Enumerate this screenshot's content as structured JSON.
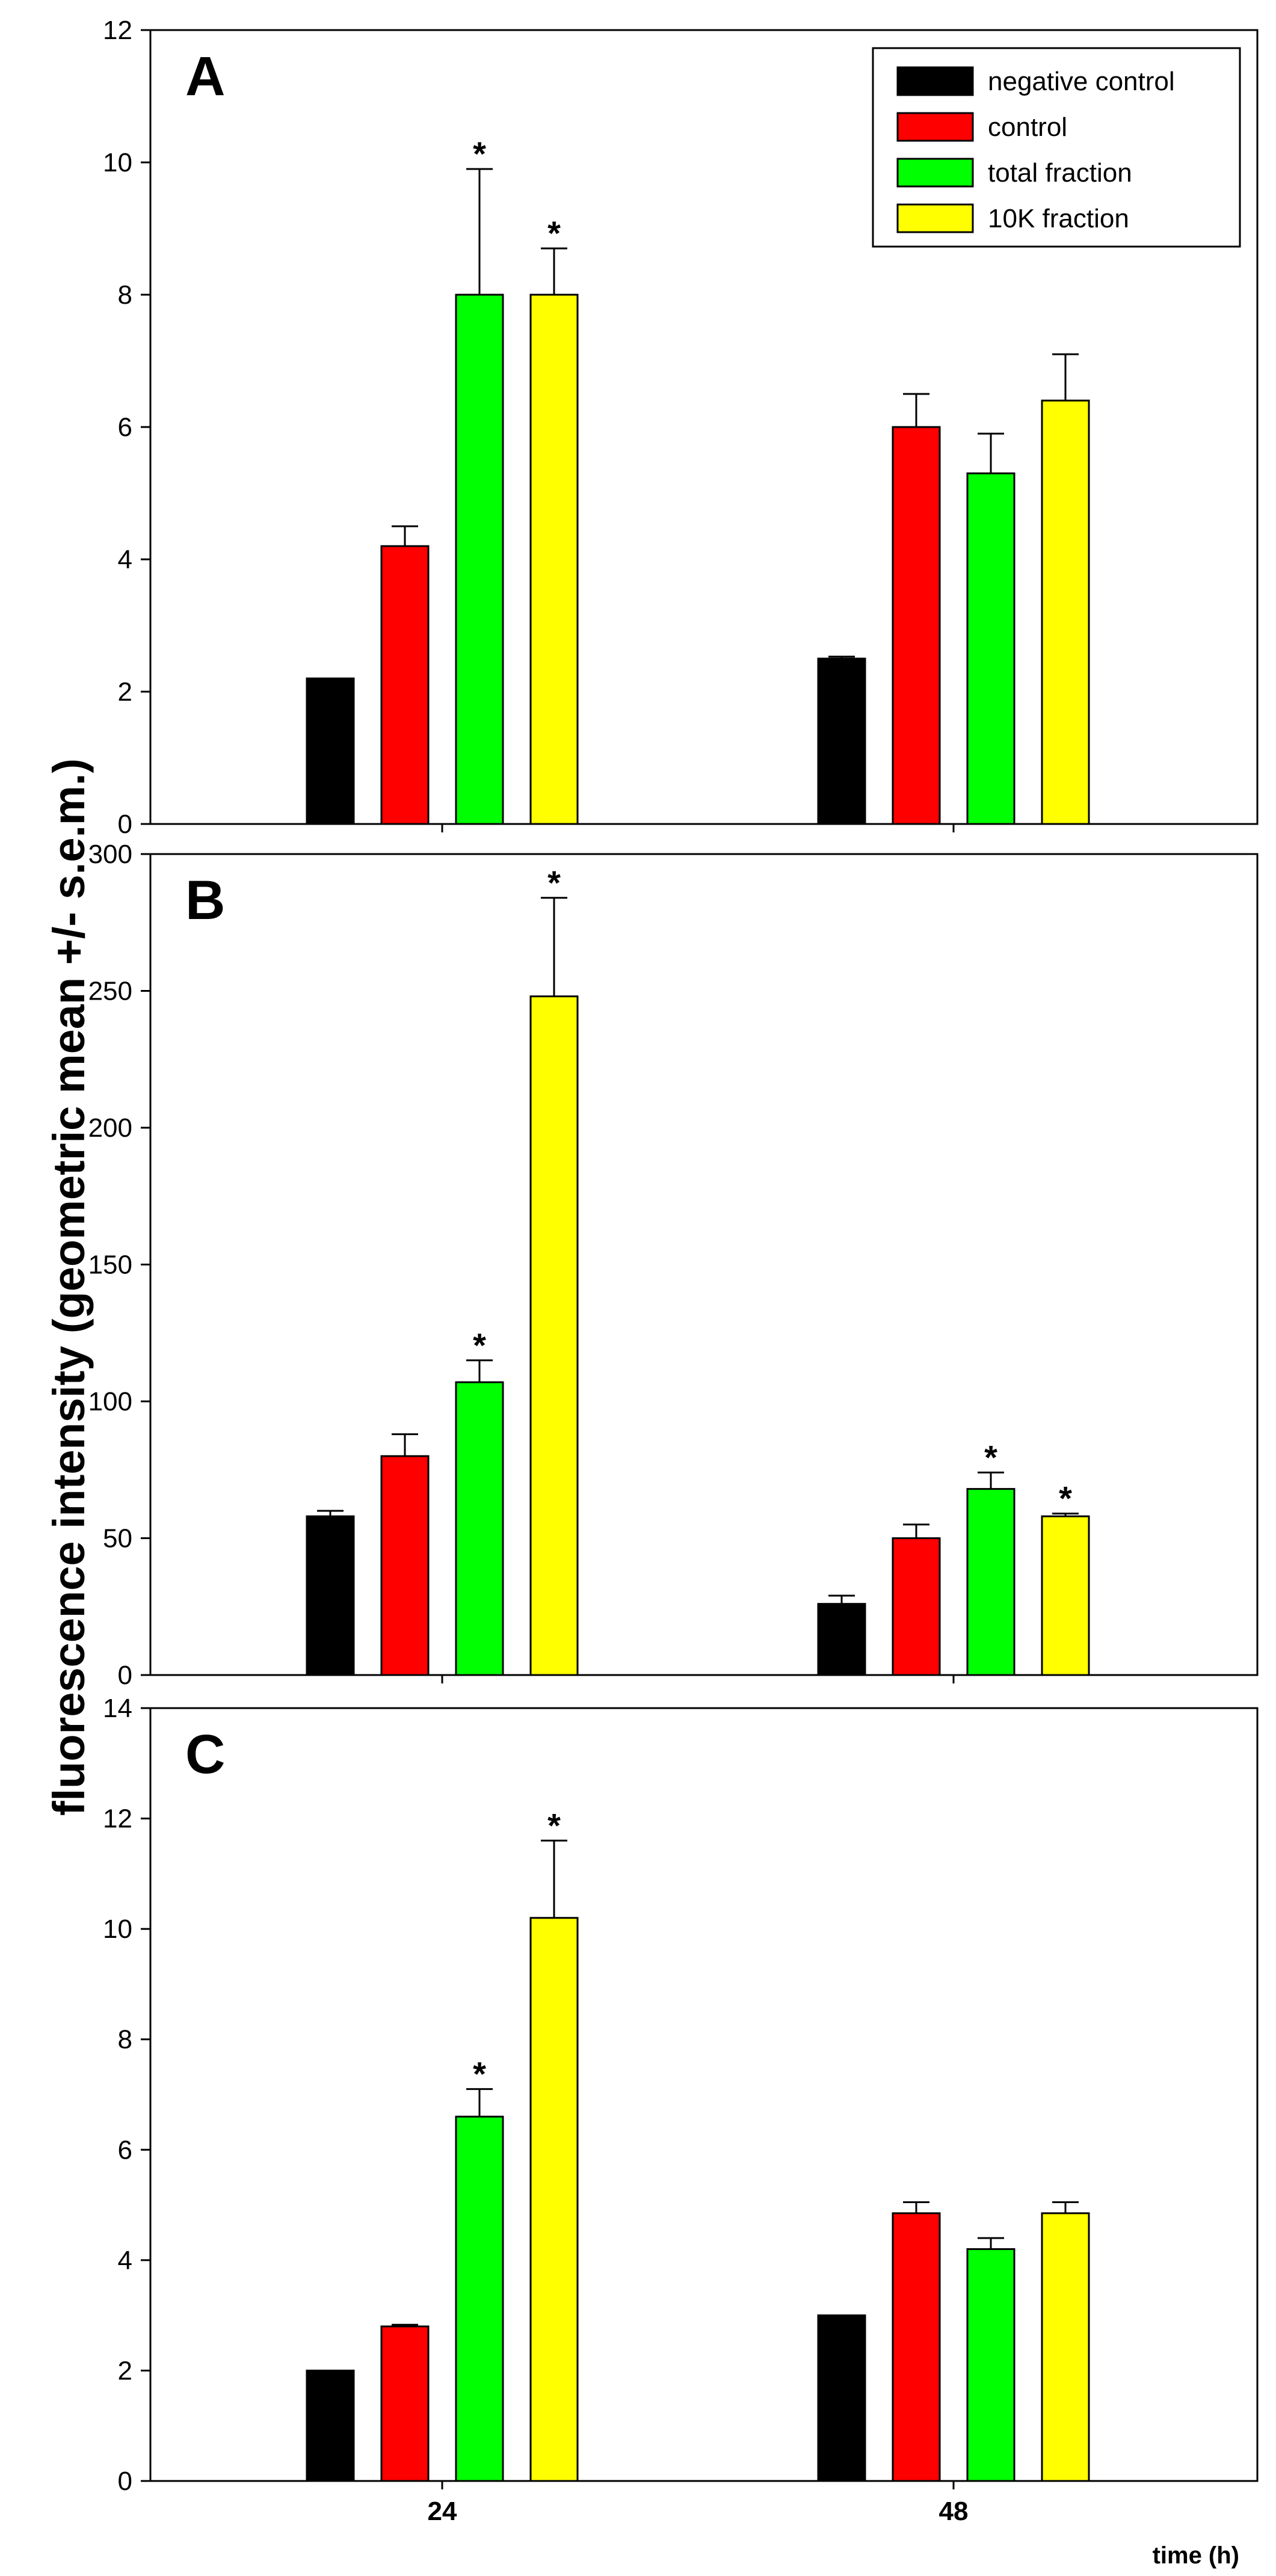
{
  "figure": {
    "ylabel": "fluorescence intensity (geometric mean +/- s.e.m.)",
    "xlabel": "time (h)",
    "categories": [
      "24",
      "48"
    ]
  },
  "legend": {
    "entries": [
      {
        "label": "negative control",
        "color": "#000000"
      },
      {
        "label": "control",
        "color": "#ff0000"
      },
      {
        "label": "total fraction",
        "color": "#00ff00"
      },
      {
        "label": "10K fraction",
        "color": "#ffff00"
      }
    ]
  },
  "chart_data": [
    {
      "type": "bar",
      "panel": "A",
      "categories": [
        "24",
        "48"
      ],
      "ylim": [
        0,
        12
      ],
      "yticks": [
        0,
        2,
        4,
        6,
        8,
        10,
        12
      ],
      "xlabel": "time (h)",
      "ylabel": "fluorescence intensity (geometric mean +/- s.e.m.)",
      "series": [
        {
          "name": "negative control",
          "color": "#000000",
          "values": [
            2.2,
            2.5
          ],
          "errors": [
            0,
            0.03
          ],
          "significant": [
            false,
            false
          ]
        },
        {
          "name": "control",
          "color": "#ff0000",
          "values": [
            4.2,
            6.0
          ],
          "errors": [
            0.3,
            0.5
          ],
          "significant": [
            false,
            false
          ]
        },
        {
          "name": "total fraction",
          "color": "#00ff00",
          "values": [
            8.0,
            5.3
          ],
          "errors": [
            1.9,
            0.6
          ],
          "significant": [
            true,
            false
          ]
        },
        {
          "name": "10K fraction",
          "color": "#ffff00",
          "values": [
            8.0,
            6.4
          ],
          "errors": [
            0.7,
            0.7
          ],
          "significant": [
            true,
            false
          ]
        }
      ]
    },
    {
      "type": "bar",
      "panel": "B",
      "categories": [
        "24",
        "48"
      ],
      "ylim": [
        0,
        300
      ],
      "yticks": [
        0,
        50,
        100,
        150,
        200,
        250,
        300
      ],
      "xlabel": "time (h)",
      "ylabel": "fluorescence intensity (geometric mean +/- s.e.m.)",
      "series": [
        {
          "name": "negative control",
          "color": "#000000",
          "values": [
            58,
            26
          ],
          "errors": [
            2,
            3
          ],
          "significant": [
            false,
            false
          ]
        },
        {
          "name": "control",
          "color": "#ff0000",
          "values": [
            80,
            50
          ],
          "errors": [
            8,
            5
          ],
          "significant": [
            false,
            false
          ]
        },
        {
          "name": "total fraction",
          "color": "#00ff00",
          "values": [
            107,
            68
          ],
          "errors": [
            8,
            6
          ],
          "significant": [
            true,
            true
          ]
        },
        {
          "name": "10K fraction",
          "color": "#ffff00",
          "values": [
            248,
            58
          ],
          "errors": [
            36,
            1
          ],
          "significant": [
            true,
            true
          ]
        }
      ]
    },
    {
      "type": "bar",
      "panel": "C",
      "categories": [
        "24",
        "48"
      ],
      "ylim": [
        0,
        14
      ],
      "yticks": [
        0,
        2,
        4,
        6,
        8,
        10,
        12,
        14
      ],
      "xlabel": "time (h)",
      "ylabel": "fluorescence intensity (geometric mean +/- s.e.m.)",
      "series": [
        {
          "name": "negative control",
          "color": "#000000",
          "values": [
            2.0,
            3.0
          ],
          "errors": [
            0,
            0
          ],
          "significant": [
            false,
            false
          ]
        },
        {
          "name": "control",
          "color": "#ff0000",
          "values": [
            2.8,
            4.85
          ],
          "errors": [
            0.03,
            0.2
          ],
          "significant": [
            false,
            false
          ]
        },
        {
          "name": "total fraction",
          "color": "#00ff00",
          "values": [
            6.6,
            4.2
          ],
          "errors": [
            0.5,
            0.2
          ],
          "significant": [
            true,
            false
          ]
        },
        {
          "name": "10K fraction",
          "color": "#ffff00",
          "values": [
            10.2,
            4.85
          ],
          "errors": [
            1.4,
            0.2
          ],
          "significant": [
            true,
            false
          ]
        }
      ]
    }
  ]
}
